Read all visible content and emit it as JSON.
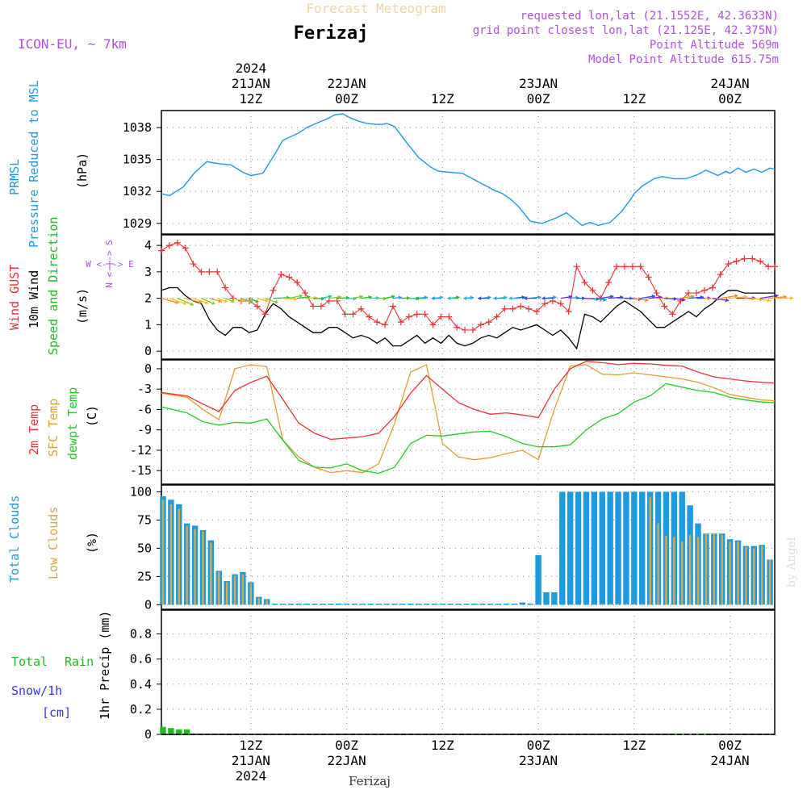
{
  "header": {
    "title": "Forecast Meteogram",
    "location": "Ferizaj",
    "model": "ICON-EU, ~ 7km",
    "requested": "requested lon,lat (21.1552E, 42.3633N)",
    "gridpoint": "grid point closest lon,lat (21.125E, 42.375N)",
    "point_alt": "Point Altitude 569m",
    "model_alt": "Model Point Altitude 615.75m",
    "footer_location": "Ferizaj",
    "watermark": "by Angel"
  },
  "colors": {
    "pressure": "#1e9be0",
    "gust": "#ee3333",
    "wind": "#000000",
    "wind_dir": "#22bb22",
    "temp2m": "#ee3333",
    "sfc": "#e0a030",
    "dewpt": "#22cc22",
    "total_cloud": "#1e9be0",
    "low_cloud": "#d4a84a",
    "rain": "#22bb22",
    "snow": "#3333ee",
    "label_purple": "#b050e0"
  },
  "time_axis": {
    "top_labels": [
      {
        "lines": [
          "2024",
          "21JAN",
          "12Z"
        ]
      },
      {
        "lines": [
          "22JAN",
          "00Z"
        ]
      },
      {
        "lines": [
          "12Z"
        ]
      },
      {
        "lines": [
          "23JAN",
          "00Z"
        ]
      },
      {
        "lines": [
          "12Z"
        ]
      },
      {
        "lines": [
          "24JAN",
          "00Z"
        ]
      }
    ],
    "bottom_labels": [
      {
        "lines": [
          "12Z",
          "21JAN",
          "2024"
        ]
      },
      {
        "lines": [
          "00Z",
          "22JAN"
        ]
      },
      {
        "lines": [
          "12Z"
        ]
      },
      {
        "lines": [
          "00Z",
          "23JAN"
        ]
      },
      {
        "lines": [
          "12Z"
        ]
      },
      {
        "lines": [
          "00Z",
          "24JAN"
        ]
      }
    ],
    "tick_hours": [
      12,
      24,
      36,
      48,
      60,
      72
    ],
    "hour_range": [
      0.8,
      77.6
    ]
  },
  "panel_labels": {
    "pressure": {
      "a": "PRMSL",
      "b": "Pressure Reduced to MSL",
      "unit": "(hPa)"
    },
    "wind": {
      "a": "Wind GUST",
      "b": "10m Wind",
      "c": "Speed and Direction",
      "unit": "(m/s)",
      "compass_n": "N",
      "compass_s": "S",
      "compass_w": "W",
      "compass_e": "E",
      "compass_we": "W <-|-> E",
      "compass_ns": "N <-|-> S"
    },
    "temp": {
      "a": "2m Temp",
      "b": "SFC Temp",
      "c": "dewpt Temp",
      "unit": "(C)"
    },
    "cloud": {
      "a": "Total Clouds",
      "b": "Low Clouds",
      "unit": "(%)"
    },
    "precip": {
      "a": "Total",
      "b": "Rain",
      "c": "Snow/1h",
      "d": "[cm]",
      "unit": "1hr Precip (mm)"
    }
  },
  "chart_data": [
    {
      "type": "line",
      "name": "pressure",
      "ylabel": "(hPa)",
      "ylim": [
        1028,
        1039.6
      ],
      "yticks": [
        "1029",
        "1032",
        "1035",
        "1038"
      ],
      "ytick_values": [
        1029,
        1032,
        1035,
        1038
      ],
      "x": [
        0.8,
        1.8,
        3.5,
        5,
        6.5,
        8,
        9.5,
        11,
        12,
        13.5,
        15,
        16,
        18,
        19,
        20.5,
        21.5,
        22.5,
        23.5,
        24.5,
        25.5,
        26.5,
        27.5,
        28.5,
        29,
        30,
        31.5,
        33,
        34.5,
        35.5,
        37,
        38.5,
        40,
        41.5,
        42.5,
        43.5,
        44.5,
        45.5,
        47,
        48.5,
        49.5,
        50.5,
        51.5,
        52.5,
        53.5,
        54.5,
        55.5,
        57,
        58,
        58.5,
        59.5,
        60,
        61,
        62.5,
        63.5,
        65,
        66.5,
        68,
        69,
        70.5,
        71.5,
        72,
        73,
        74,
        75,
        76,
        77,
        77.6
      ],
      "series": [
        {
          "name": "PRMSL",
          "values": [
            1031.8,
            1031.6,
            1032.4,
            1033.8,
            1034.8,
            1034.6,
            1034.5,
            1033.8,
            1033.5,
            1033.7,
            1035.5,
            1036.8,
            1037.5,
            1038.0,
            1038.5,
            1038.8,
            1039.2,
            1039.3,
            1038.9,
            1038.6,
            1038.4,
            1038.3,
            1038.3,
            1038.4,
            1038.1,
            1036.6,
            1035.2,
            1034.3,
            1033.9,
            1033.8,
            1033.7,
            1033.1,
            1032.5,
            1032.1,
            1031.8,
            1031.3,
            1030.6,
            1029.2,
            1029.0,
            1029.3,
            1029.6,
            1030.0,
            1029.4,
            1028.8,
            1029.1,
            1028.8,
            1029.1,
            1029.8,
            1030.2,
            1031.2,
            1031.8,
            1032.5,
            1033.2,
            1033.4,
            1033.2,
            1033.2,
            1033.6,
            1034.0,
            1033.5,
            1033.9,
            1033.7,
            1034.2,
            1033.8,
            1034.1,
            1033.8,
            1034.2,
            1034.1
          ]
        }
      ]
    },
    {
      "type": "line",
      "name": "wind",
      "ylabel": "(m/s)",
      "ylim": [
        -0.3,
        4.4
      ],
      "yticks": [
        "0",
        "1",
        "2",
        "3",
        "4"
      ],
      "ytick_values": [
        0,
        1,
        2,
        3,
        4
      ],
      "x": [
        0.8,
        1.8,
        2.8,
        3.8,
        4.8,
        5.8,
        6.8,
        7.8,
        8.8,
        9.8,
        10.8,
        11.8,
        12.8,
        13.8,
        14.8,
        15.8,
        16.8,
        17.8,
        18.8,
        19.8,
        20.8,
        21.8,
        22.8,
        23.8,
        24.8,
        25.8,
        26.8,
        27.8,
        28.8,
        29.8,
        30.8,
        31.8,
        32.8,
        33.8,
        34.8,
        35.8,
        36.8,
        37.8,
        38.8,
        39.8,
        40.8,
        41.8,
        42.8,
        43.8,
        44.8,
        45.8,
        46.8,
        47.8,
        48.8,
        49.8,
        50.8,
        51.8,
        52.8,
        53.8,
        54.8,
        55.8,
        56.8,
        57.8,
        58.8,
        59.8,
        60.8,
        61.8,
        62.8,
        63.8,
        64.8,
        65.8,
        66.8,
        67.8,
        68.8,
        69.8,
        70.8,
        71.8,
        72.8,
        73.8,
        74.8,
        75.8,
        76.8,
        77.6
      ],
      "series": [
        {
          "name": "Wind GUST",
          "values": [
            3.8,
            4.0,
            4.1,
            3.9,
            3.3,
            3.0,
            3.0,
            3.0,
            2.4,
            2.0,
            1.9,
            1.9,
            1.7,
            1.4,
            2.3,
            2.9,
            2.8,
            2.6,
            2.2,
            1.7,
            1.7,
            1.9,
            1.9,
            1.4,
            1.4,
            1.6,
            1.3,
            1.1,
            1.0,
            1.7,
            1.1,
            1.3,
            1.4,
            1.4,
            1.0,
            1.3,
            1.3,
            0.9,
            0.8,
            0.8,
            1.0,
            1.1,
            1.3,
            1.6,
            1.6,
            1.7,
            1.6,
            1.5,
            1.8,
            1.9,
            1.8,
            1.5,
            3.2,
            2.6,
            2.3,
            2.0,
            2.6,
            3.2,
            3.2,
            3.2,
            3.2,
            2.8,
            2.2,
            1.7,
            1.4,
            1.9,
            2.2,
            2.2,
            2.3,
            2.4,
            2.9,
            3.3,
            3.4,
            3.5,
            3.5,
            3.4,
            3.2,
            3.2
          ]
        },
        {
          "name": "10m Wind",
          "values": [
            2.3,
            2.4,
            2.4,
            2.1,
            1.9,
            1.8,
            1.2,
            0.8,
            0.6,
            0.9,
            0.9,
            0.7,
            0.8,
            1.4,
            1.8,
            1.6,
            1.3,
            1.1,
            0.9,
            0.7,
            0.7,
            0.9,
            0.9,
            0.7,
            0.5,
            0.6,
            0.5,
            0.3,
            0.5,
            0.2,
            0.2,
            0.4,
            0.6,
            0.3,
            0.5,
            0.3,
            0.6,
            0.3,
            0.2,
            0.3,
            0.5,
            0.6,
            0.5,
            0.7,
            0.9,
            0.8,
            0.9,
            1.0,
            0.8,
            0.6,
            0.8,
            0.5,
            0.1,
            1.4,
            1.3,
            1.1,
            1.4,
            1.7,
            1.9,
            1.7,
            1.5,
            1.2,
            0.9,
            0.9,
            1.1,
            1.3,
            1.5,
            1.3,
            1.6,
            1.8,
            2.1,
            2.3,
            2.3,
            2.2,
            2.2,
            2.2,
            2.2,
            2.2
          ]
        }
      ]
    },
    {
      "type": "line",
      "name": "temperature",
      "ylabel": "(C)",
      "ylim": [
        -17,
        1.3
      ],
      "yticks": [
        "0",
        "-3",
        "-6",
        "-9",
        "-12",
        "-15"
      ],
      "ytick_values": [
        0,
        -3,
        -6,
        -9,
        -12,
        -15
      ],
      "x": [
        0.8,
        4,
        6,
        8,
        10,
        12,
        14,
        16,
        18,
        20,
        22,
        24,
        26,
        28,
        30,
        32,
        34,
        36,
        38,
        40,
        42,
        44,
        46,
        48,
        50,
        52,
        54,
        56,
        58,
        60,
        62,
        64,
        66,
        68,
        70,
        72,
        74,
        76,
        77.6
      ],
      "series": [
        {
          "name": "2m Temp",
          "values": [
            -3.5,
            -4.0,
            -5.2,
            -6.3,
            -3.2,
            -2.0,
            -1.1,
            -4.5,
            -8.0,
            -9.5,
            -10.4,
            -10.2,
            -10.0,
            -9.5,
            -7.0,
            -3.6,
            -1.0,
            -3.0,
            -5.0,
            -6.0,
            -6.7,
            -6.5,
            -6.8,
            -7.2,
            -3.0,
            0.0,
            1.1,
            0.9,
            0.6,
            0.8,
            0.7,
            0.5,
            0.4,
            -0.5,
            -1.2,
            -1.5,
            -1.8,
            -2.0,
            -2.1
          ]
        },
        {
          "name": "SFC Temp",
          "values": [
            -3.6,
            -4.2,
            -6.0,
            -7.5,
            0.0,
            0.6,
            0.3,
            -10.5,
            -13.0,
            -14.5,
            -15.3,
            -15.0,
            -15.3,
            -14.0,
            -8.0,
            -0.5,
            0.6,
            -11.0,
            -13.0,
            -13.4,
            -13.1,
            -12.5,
            -12.0,
            -13.4,
            -6.0,
            0.4,
            0.6,
            -0.8,
            -0.9,
            -0.6,
            -0.9,
            -1.2,
            -1.5,
            -2.0,
            -2.8,
            -3.8,
            -4.2,
            -4.6,
            -4.7
          ]
        },
        {
          "name": "dewpt Temp",
          "values": [
            -5.6,
            -6.5,
            -7.8,
            -8.3,
            -7.9,
            -8.0,
            -7.4,
            -10.5,
            -13.5,
            -14.5,
            -14.6,
            -14.0,
            -15.0,
            -15.4,
            -14.5,
            -11.0,
            -9.8,
            -9.9,
            -9.6,
            -9.3,
            -9.2,
            -10.0,
            -11.0,
            -11.5,
            -11.5,
            -11.2,
            -9.0,
            -7.4,
            -6.6,
            -4.9,
            -4.0,
            -2.2,
            -2.7,
            -3.2,
            -3.5,
            -4.2,
            -4.6,
            -4.9,
            -5.0
          ]
        }
      ]
    },
    {
      "type": "bar",
      "name": "clouds",
      "ylabel": "(%)",
      "ylim": [
        -4,
        106
      ],
      "yticks": [
        "0",
        "25",
        "50",
        "75",
        "100"
      ],
      "ytick_values": [
        0,
        25,
        50,
        75,
        100
      ],
      "x": [
        1,
        2,
        3,
        4,
        5,
        6,
        7,
        8,
        9,
        10,
        11,
        12,
        13,
        14,
        15,
        16,
        17,
        18,
        19,
        20,
        21,
        22,
        23,
        24,
        25,
        26,
        27,
        28,
        29,
        30,
        31,
        32,
        33,
        34,
        35,
        36,
        37,
        38,
        39,
        40,
        41,
        42,
        43,
        44,
        45,
        46,
        47,
        48,
        49,
        50,
        51,
        52,
        53,
        54,
        55,
        56,
        57,
        58,
        59,
        60,
        61,
        62,
        63,
        64,
        65,
        66,
        67,
        68,
        69,
        70,
        71,
        72,
        73,
        74,
        75,
        76,
        77
      ],
      "series": [
        {
          "name": "Total Clouds",
          "values": [
            96,
            93,
            89,
            72,
            70,
            66,
            57,
            30,
            21,
            27,
            29,
            20,
            7,
            5,
            1,
            1,
            1,
            1,
            1,
            1,
            1,
            1,
            1,
            1,
            1,
            1,
            1,
            1,
            1,
            1,
            1,
            1,
            1,
            1,
            1,
            1,
            1,
            1,
            1,
            1,
            1,
            1,
            1,
            1,
            1,
            2,
            1,
            44,
            11,
            11,
            100,
            100,
            100,
            100,
            100,
            100,
            100,
            100,
            100,
            100,
            100,
            100,
            100,
            100,
            100,
            100,
            88,
            72,
            63,
            63,
            63,
            58,
            57,
            52,
            52,
            53,
            40
          ]
        },
        {
          "name": "Low Clouds",
          "values": [
            93,
            89,
            85,
            70,
            67,
            65,
            55,
            29,
            20,
            26,
            27,
            19,
            6,
            4,
            0,
            0,
            0,
            0,
            0,
            0,
            0,
            0,
            0,
            0,
            0,
            0,
            0,
            0,
            0,
            0,
            0,
            0,
            0,
            0,
            0,
            0,
            0,
            0,
            0,
            0,
            0,
            0,
            0,
            0,
            0,
            0,
            0,
            0,
            0,
            0,
            0,
            0,
            0,
            0,
            0,
            1,
            1,
            1,
            1,
            1,
            1,
            95,
            72,
            61,
            60,
            56,
            62,
            60,
            63,
            63,
            62,
            56,
            56,
            51,
            50,
            52,
            40
          ]
        }
      ]
    },
    {
      "type": "bar",
      "name": "precip",
      "ylabel": "1hr Precip (mm)",
      "ylim": [
        0,
        0.99
      ],
      "yticks": [
        "0",
        "0.2",
        "0.4",
        "0.6",
        "0.8"
      ],
      "ytick_values": [
        0,
        0.2,
        0.4,
        0.6,
        0.8
      ],
      "x": [
        1,
        2,
        3,
        4,
        65,
        66,
        67,
        68,
        69
      ],
      "series": [
        {
          "name": "Total Rain",
          "values": [
            0.06,
            0.05,
            0.04,
            0.04,
            0.005,
            0.005,
            0.005,
            0.005,
            0.005
          ]
        }
      ]
    }
  ]
}
